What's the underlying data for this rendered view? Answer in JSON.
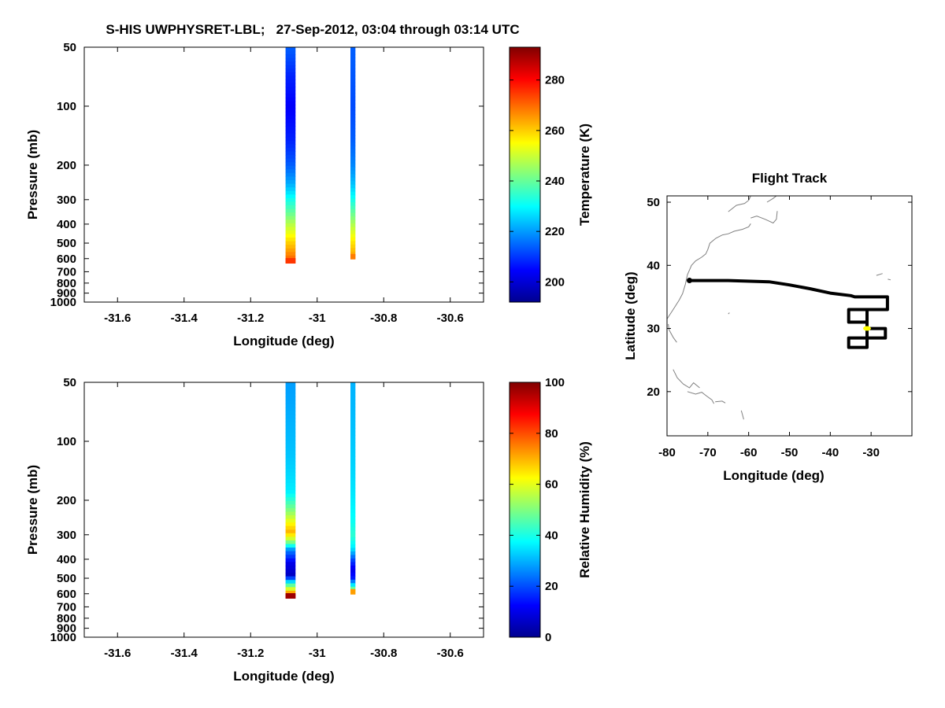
{
  "figure_title": "S-HIS UWPHYSRET-LBL;   27-Sep-2012, 03:04 through 03:14 UTC",
  "colors": {
    "jet_stops": [
      "#00008f",
      "#0000ff",
      "#00ffff",
      "#ffff00",
      "#ff0000",
      "#800000"
    ],
    "track": "#000000",
    "current_position": "#ffff00",
    "coastline": "#808080"
  },
  "chart_data": [
    {
      "id": "temperature-profile",
      "type": "heatmap",
      "title": "",
      "xlabel": "Longitude (deg)",
      "ylabel": "Pressure (mb)",
      "xlim": [
        -31.7,
        -30.5
      ],
      "ylim": [
        1000,
        50
      ],
      "y_scale": "log",
      "x_ticks": [
        -31.6,
        -31.4,
        -31.2,
        -31,
        -30.8,
        -30.6
      ],
      "x_tick_labels": [
        "-31.6",
        "-31.4",
        "-31.2",
        "-31",
        "-30.8",
        "-30.6"
      ],
      "y_ticks": [
        50,
        100,
        200,
        300,
        400,
        500,
        600,
        700,
        800,
        900,
        1000
      ],
      "y_tick_labels": [
        "50",
        "100",
        "200",
        "300",
        "400",
        "500",
        "600",
        "700",
        "800",
        "900",
        "1000"
      ],
      "colorbar": {
        "label": "Temperature (K)",
        "range": [
          192,
          293
        ],
        "ticks": [
          200,
          220,
          240,
          260,
          280
        ],
        "tick_labels": [
          "200",
          "220",
          "240",
          "260",
          "280"
        ]
      },
      "columns": [
        {
          "lon_range": [
            -31.095,
            -31.065
          ],
          "pressure": [
            50,
            70,
            100,
            150,
            200,
            250,
            300,
            350,
            400,
            450,
            500,
            550,
            600,
            630
          ],
          "values": [
            214,
            208,
            204,
            208,
            214,
            222,
            232,
            240,
            248,
            254,
            260,
            265,
            270,
            272
          ],
          "bottom_pressure": 630,
          "bottom_value": 275
        },
        {
          "lon_range": [
            -30.9,
            -30.885
          ],
          "pressure": [
            50,
            100,
            150,
            200,
            250,
            300,
            350,
            400,
            450,
            500,
            550,
            600
          ],
          "values": [
            214,
            212,
            214,
            218,
            224,
            232,
            240,
            247,
            253,
            258,
            262,
            265
          ],
          "bottom_pressure": 600,
          "bottom_value": 268
        }
      ]
    },
    {
      "id": "humidity-profile",
      "type": "heatmap",
      "title": "",
      "xlabel": "Longitude (deg)",
      "ylabel": "Pressure (mb)",
      "xlim": [
        -31.7,
        -30.5
      ],
      "ylim": [
        1000,
        50
      ],
      "y_scale": "log",
      "x_ticks": [
        -31.6,
        -31.4,
        -31.2,
        -31,
        -30.8,
        -30.6
      ],
      "x_tick_labels": [
        "-31.6",
        "-31.4",
        "-31.2",
        "-31",
        "-30.8",
        "-30.6"
      ],
      "y_ticks": [
        50,
        100,
        200,
        300,
        400,
        500,
        600,
        700,
        800,
        900,
        1000
      ],
      "y_tick_labels": [
        "50",
        "100",
        "200",
        "300",
        "400",
        "500",
        "600",
        "700",
        "800",
        "900",
        "1000"
      ],
      "colorbar": {
        "label": "Relative Humidity (%)",
        "range": [
          0,
          100
        ],
        "ticks": [
          0,
          20,
          40,
          60,
          80,
          100
        ],
        "tick_labels": [
          "0",
          "20",
          "40",
          "60",
          "80",
          "100"
        ]
      },
      "columns": [
        {
          "lon_range": [
            -31.095,
            -31.065
          ],
          "pressure": [
            50,
            80,
            120,
            180,
            230,
            260,
            290,
            320,
            360,
            420,
            480,
            530,
            570,
            610,
            630
          ],
          "values": [
            28,
            30,
            32,
            36,
            52,
            62,
            70,
            55,
            25,
            10,
            6,
            40,
            60,
            80,
            95
          ],
          "bottom_pressure": 630,
          "bottom_value": 97
        },
        {
          "lon_range": [
            -30.9,
            -30.885
          ],
          "pressure": [
            50,
            100,
            150,
            200,
            250,
            300,
            350,
            400,
            450,
            500,
            550,
            580,
            600
          ],
          "values": [
            30,
            32,
            34,
            36,
            38,
            42,
            36,
            20,
            10,
            15,
            40,
            55,
            70
          ],
          "bottom_pressure": 600,
          "bottom_value": 72
        }
      ]
    },
    {
      "id": "flight-track",
      "type": "line",
      "title": "Flight Track",
      "xlabel": "Longitude (deg)",
      "ylabel": "Latitude (deg)",
      "xlim": [
        -80,
        -20
      ],
      "ylim": [
        13,
        51
      ],
      "x_ticks": [
        -80,
        -70,
        -60,
        -50,
        -40,
        -30
      ],
      "x_tick_labels": [
        "-80",
        "-70",
        "-60",
        "-50",
        "-40",
        "-30"
      ],
      "y_ticks": [
        20,
        30,
        40,
        50
      ],
      "y_tick_labels": [
        "20",
        "30",
        "40",
        "50"
      ],
      "track": {
        "lon": [
          -74.5,
          -72,
          -65,
          -55,
          -50,
          -45,
          -40,
          -35,
          -34,
          -31.5,
          -26,
          -26,
          -31,
          -31,
          -26.5,
          -26.5,
          -31,
          -31,
          -35.5,
          -35.5,
          -31,
          -31,
          -35.5,
          -35.5,
          -31
        ],
        "lat": [
          37.6,
          37.6,
          37.6,
          37.4,
          36.9,
          36.3,
          35.6,
          35.2,
          35.0,
          35.0,
          35.0,
          33.0,
          33.0,
          30.0,
          30.0,
          28.5,
          28.5,
          27.0,
          27.0,
          28.5,
          28.5,
          31.0,
          31.0,
          33.0,
          33.0
        ]
      },
      "current_position": {
        "lon": -31,
        "lat": 30
      },
      "coastlines": [
        {
          "lon": [
            -80,
            -78.5,
            -77,
            -76.2,
            -75.5,
            -75,
            -74,
            -73,
            -71.5,
            -70.5,
            -70,
            -69.5,
            -68,
            -66.5
          ],
          "lat": [
            31.5,
            33.0,
            34.5,
            35.5,
            37.0,
            38.5,
            40.0,
            40.7,
            41.3,
            41.8,
            42.5,
            43.5,
            44.3,
            44.8
          ]
        },
        {
          "lon": [
            -66.5,
            -65,
            -63.5,
            -61.5,
            -60,
            -59.5
          ],
          "lat": [
            44.8,
            45.0,
            45.4,
            45.7,
            46.1,
            46.6
          ]
        },
        {
          "lon": [
            -65,
            -63,
            -61,
            -60,
            -59.5
          ],
          "lat": [
            48.5,
            49.5,
            49.8,
            50.3,
            51.0
          ]
        },
        {
          "lon": [
            -59.5,
            -58,
            -56,
            -55,
            -54,
            -53.2,
            -53
          ],
          "lat": [
            47.5,
            47.8,
            47.3,
            47.0,
            46.7,
            47.3,
            48.6
          ]
        },
        {
          "lon": [
            -55.5,
            -54,
            -53.2
          ],
          "lat": [
            50.0,
            50.6,
            51.0
          ]
        },
        {
          "lon": [
            -79.7,
            -79.5,
            -78.5,
            -77.6
          ],
          "lat": [
            30.7,
            29.8,
            28.6,
            27.8
          ]
        },
        {
          "lon": [
            -78.5,
            -77.5,
            -76,
            -74.5,
            -73.5,
            -72
          ],
          "lat": [
            23.5,
            22.2,
            21.2,
            20.6,
            21.4,
            20.6
          ]
        },
        {
          "lon": [
            -75,
            -73,
            -71.5,
            -70.5,
            -69,
            -68.5
          ],
          "lat": [
            20.0,
            19.6,
            19.9,
            19.4,
            18.7,
            18.1
          ]
        },
        {
          "lon": [
            -68.2,
            -66.5,
            -65.7
          ],
          "lat": [
            18.4,
            18.5,
            18.2
          ]
        },
        {
          "lon": [
            -61.8,
            -61.5,
            -61.2
          ],
          "lat": [
            17.0,
            16.3,
            15.6
          ]
        },
        {
          "lon": [
            -65.0,
            -64.7
          ],
          "lat": [
            32.3,
            32.5
          ]
        },
        {
          "lon": [
            -28.7,
            -27.2
          ],
          "lat": [
            38.4,
            38.7
          ]
        },
        {
          "lon": [
            -25.9,
            -25.2
          ],
          "lat": [
            37.8,
            37.7
          ]
        }
      ]
    }
  ]
}
